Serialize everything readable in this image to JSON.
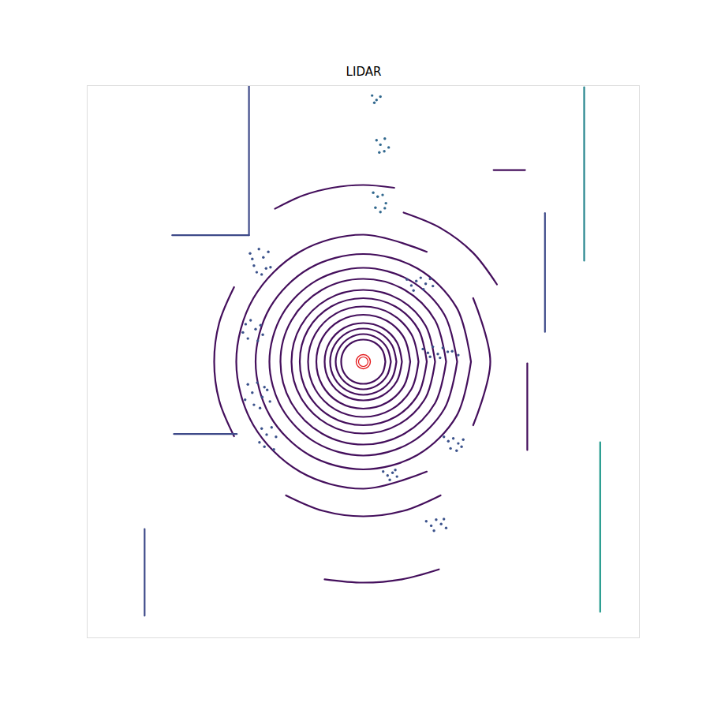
{
  "chart_data": {
    "type": "scatter",
    "title": "LIDAR",
    "xlim": [
      -50,
      50
    ],
    "ylim": [
      -50,
      50
    ],
    "tick_labels": false,
    "grid": false,
    "series": [
      {
        "type": "line",
        "color": "#440f5c",
        "x": [
          4,
          3.5,
          2,
          0,
          -2,
          -3.5,
          -4,
          -3.5,
          -2,
          0,
          2,
          3.5,
          4
        ],
        "y": [
          0,
          2,
          3.5,
          4,
          3.5,
          2,
          0,
          -2,
          -3.5,
          -4,
          -3.5,
          -2,
          0
        ]
      },
      {
        "type": "line",
        "color": "#440f5c",
        "x": [
          5,
          4.3,
          2.5,
          0,
          -2.5,
          -4.3,
          -5,
          -4.3,
          -2.5,
          0,
          2.5,
          4.3,
          5
        ],
        "y": [
          0,
          2.5,
          4.3,
          5,
          4.3,
          2.5,
          0,
          -2.5,
          -4.3,
          -5,
          -4.3,
          -2.5,
          0
        ]
      },
      {
        "type": "line",
        "color": "#440f5c",
        "x": [
          6,
          5.2,
          3,
          0,
          -3,
          -5.2,
          -6,
          -5.2,
          -3,
          0,
          3,
          5.2,
          6
        ],
        "y": [
          0,
          3,
          5.2,
          6,
          5.2,
          3,
          0,
          -3,
          -5.2,
          -6,
          -5.2,
          -3,
          0
        ]
      },
      {
        "type": "line",
        "color": "#440f5c",
        "x": [
          7,
          6.1,
          3.5,
          0,
          -3.5,
          -6.1,
          -7,
          -6.1,
          -3.5,
          0,
          3.5,
          6.1,
          7
        ],
        "y": [
          0,
          3.5,
          6.1,
          7,
          6.1,
          3.5,
          0,
          -3.5,
          -6.1,
          -7,
          -6.1,
          -3.5,
          0
        ]
      },
      {
        "type": "line",
        "color": "#440f5c",
        "x": [
          8.5,
          7.4,
          4.3,
          0,
          -4.3,
          -7.4,
          -8.5,
          -7.4,
          -4.3,
          0,
          4.3,
          7.4,
          8.5
        ],
        "y": [
          0,
          4.3,
          7.4,
          8.5,
          7.4,
          4.3,
          0,
          -4.3,
          -7.4,
          -8.5,
          -7.4,
          -4.3,
          0
        ]
      },
      {
        "type": "line",
        "color": "#440f5c",
        "x": [
          10,
          8.7,
          5,
          0,
          -5,
          -8.7,
          -10,
          -8.7,
          -5,
          0,
          5,
          8.7,
          10
        ],
        "y": [
          0,
          5,
          8.7,
          10,
          8.7,
          5,
          0,
          -5,
          -8.7,
          -10,
          -8.7,
          -5,
          0
        ]
      },
      {
        "type": "line",
        "color": "#440f5c",
        "x": [
          11.5,
          10,
          5.8,
          0,
          -5.8,
          -10,
          -11.5,
          -10,
          -5.8,
          0,
          5.8,
          10,
          11.5
        ],
        "y": [
          0,
          5.8,
          10,
          11.5,
          10,
          5.8,
          0,
          -5.8,
          -10,
          -11.5,
          -10,
          -5.8,
          0
        ]
      },
      {
        "type": "line",
        "color": "#440f5c",
        "x": [
          13,
          11.3,
          6.5,
          0,
          -6.5,
          -11.3,
          -13,
          -11.3,
          -6.5,
          0,
          6.5,
          11.3,
          13
        ],
        "y": [
          0,
          6.5,
          11.3,
          13,
          11.3,
          6.5,
          0,
          -6.5,
          -11.3,
          -13,
          -11.3,
          -6.5,
          0
        ]
      },
      {
        "type": "line",
        "color": "#440f5c",
        "x": [
          15,
          13,
          7.5,
          0,
          -7.5,
          -13,
          -15,
          -13,
          -7.5,
          0,
          7.5,
          13,
          15
        ],
        "y": [
          0,
          7.5,
          13,
          15,
          13,
          7.5,
          0,
          -7.5,
          -13,
          -15,
          -13,
          -7.5,
          0
        ]
      },
      {
        "type": "line",
        "color": "#440f5c",
        "x": [
          17,
          14.7,
          8.5,
          0,
          -8.5,
          -14.7,
          -17,
          -14.7,
          -8.5,
          0,
          8.5,
          14.7,
          17
        ],
        "y": [
          0,
          8.5,
          14.7,
          17,
          14.7,
          8.5,
          0,
          -8.5,
          -14.7,
          -17,
          -14.7,
          -8.5,
          0
        ]
      },
      {
        "type": "line",
        "color": "#440f5c",
        "x": [
          19.5,
          16.9,
          9.8,
          0,
          -9.8,
          -16.9,
          -19.5,
          -16.9,
          -9.8,
          0,
          9.8,
          16.9,
          19.5
        ],
        "y": [
          0,
          9.8,
          16.9,
          19.5,
          16.9,
          9.8,
          0,
          -9.8,
          -16.9,
          -19.5,
          -16.9,
          -9.8,
          0
        ]
      },
      {
        "type": "line",
        "color": "#440f5c",
        "x": [
          11.5,
          0,
          -11.5,
          -19.9,
          -23,
          -19.9,
          -11.5,
          0,
          11.5
        ],
        "y": [
          19.9,
          23,
          19.9,
          11.5,
          0,
          -11.5,
          -19.9,
          -23,
          -19.9
        ]
      },
      {
        "type": "line",
        "color": "#440f5c",
        "x": [
          19.9,
          23,
          19.9
        ],
        "y": [
          -11.5,
          0,
          11.5
        ]
      },
      {
        "type": "line",
        "color": "#440f5c",
        "x": [
          5.6,
          0,
          -5.6,
          -10.9,
          -16
        ],
        "y": [
          31.5,
          32,
          31.5,
          30.1,
          27.7
        ]
      },
      {
        "type": "line",
        "color": "#440f5c",
        "x": [
          24.2,
          19.8,
          14,
          7.3
        ],
        "y": [
          14,
          19.8,
          24.2,
          27
        ]
      },
      {
        "type": "line",
        "color": "#440f5c",
        "x": [
          -14,
          -7.3,
          0,
          7.3,
          14
        ],
        "y": [
          -24.2,
          -27,
          -28,
          -27,
          -24.2
        ]
      },
      {
        "type": "line",
        "color": "#440f5c",
        "x": [
          -7,
          0,
          7,
          13.7
        ],
        "y": [
          -39.4,
          -40,
          -39.4,
          -37.6
        ]
      },
      {
        "type": "line",
        "color": "#440f5c",
        "x": [
          -23.4,
          -26.1,
          -27,
          -26.1,
          -23.4
        ],
        "y": [
          13.5,
          7,
          0,
          -7,
          -13.5
        ]
      },
      {
        "type": "line",
        "color": "#440f5c",
        "x": [
          29.7,
          29.7
        ],
        "y": [
          -0.3,
          -16
        ]
      },
      {
        "type": "line",
        "color": "#440f5c",
        "x": [
          23.6,
          29.3
        ],
        "y": [
          34.7,
          34.7
        ]
      },
      {
        "type": "line",
        "color": "#3e4a89",
        "x": [
          -20.7,
          -20.7
        ],
        "y": [
          50,
          22.9
        ]
      },
      {
        "type": "line",
        "color": "#3e4a89",
        "x": [
          -34.6,
          -20.7
        ],
        "y": [
          22.9,
          22.9
        ]
      },
      {
        "type": "line",
        "color": "#3e4a89",
        "x": [
          32.9,
          32.9
        ],
        "y": [
          26.9,
          5.4
        ]
      },
      {
        "type": "line",
        "color": "#3e4a89",
        "x": [
          -39.6,
          -39.6
        ],
        "y": [
          -30.3,
          -46
        ]
      },
      {
        "type": "line",
        "color": "#3e4a89",
        "x": [
          -34.3,
          -22.9
        ],
        "y": [
          -13.1,
          -13.1
        ]
      },
      {
        "type": "line",
        "color": "#25858e",
        "x": [
          40,
          40
        ],
        "y": [
          49.7,
          18.3
        ]
      },
      {
        "type": "line",
        "color": "#1f988b",
        "x": [
          42.9,
          42.9
        ],
        "y": [
          -14.6,
          -45.3
        ]
      },
      {
        "type": "scatter",
        "color": "#3b528b",
        "marker": "circle",
        "x": [
          -20.5,
          -19.8,
          -18.9,
          -18.1,
          -17.2,
          -16.8,
          -19.3,
          -18.4,
          -17.6,
          -20.1,
          -21.3,
          -20.4,
          -19.5,
          -18.6,
          -20.9,
          -19.1,
          -18.2,
          -21.8,
          -20.9,
          -20.1,
          -19.2,
          -18.3,
          -17.4,
          -19.8,
          -18.7,
          -17.9,
          -21.4,
          -16.9,
          -18.4,
          -17.5,
          -16.6,
          -15.8,
          -17.9,
          -16.2,
          -18.8
        ],
        "y": [
          19.6,
          17.4,
          20.4,
          18.9,
          19.9,
          17.1,
          16.2,
          15.8,
          16.9,
          18.6,
          6.8,
          7.5,
          5.9,
          6.6,
          4.2,
          3.8,
          4.9,
          5.3,
          -4.1,
          -5.6,
          -3.8,
          -6.4,
          -5.1,
          -7.8,
          -8.4,
          -4.6,
          -6.9,
          -7.2,
          -12.1,
          -13.2,
          -11.9,
          -13.6,
          -15.4,
          -15.9,
          -14.6
        ]
      },
      {
        "type": "scatter",
        "color": "#31688e",
        "marker": "circle",
        "x": [
          2.4,
          3.1,
          3.9,
          4.6,
          2.9,
          3.8,
          1.8,
          2.6,
          3.5,
          4.1,
          2.2,
          3.1,
          3.9,
          1.6,
          2.4,
          3.1,
          2.0
        ],
        "y": [
          40.1,
          39.3,
          40.4,
          38.8,
          37.9,
          38.1,
          30.6,
          29.9,
          30.2,
          28.7,
          27.9,
          27.1,
          27.8,
          48.2,
          47.4,
          48.0,
          46.9
        ]
      },
      {
        "type": "scatter",
        "color": "#3b528b",
        "marker": "circle",
        "x": [
          7.9,
          8.7,
          9.6,
          10.4,
          11.3,
          12.1,
          9.1,
          10.9,
          12.6,
          10.8,
          11.7,
          12.6,
          13.5,
          14.4,
          15.3,
          12.1,
          13.9,
          16.1,
          17.2,
          14.6,
          15.4,
          16.3,
          17.2,
          18.1,
          15.8,
          16.9,
          17.8,
          11.4,
          12.3,
          13.2,
          14.1,
          15,
          12.8,
          14.6,
          3.6,
          4.4,
          5.3,
          6.1,
          4.8,
          5.8
        ],
        "y": [
          14.9,
          13.8,
          14.6,
          15.2,
          14.1,
          15.0,
          12.9,
          13.1,
          13.7,
          2.3,
          1.6,
          2.7,
          1.4,
          2.5,
          1.8,
          0.9,
          0.7,
          1.9,
          1.2,
          -13.6,
          -14.4,
          -13.9,
          -14.8,
          -14.1,
          -15.7,
          -16.1,
          -15.4,
          -28.9,
          -29.7,
          -28.6,
          -29.4,
          -30.1,
          -30.6,
          -28.5,
          -19.9,
          -20.6,
          -20.1,
          -20.8,
          -21.4,
          -19.6
        ]
      },
      {
        "type": "scatter",
        "color": "#e41a1c",
        "marker": "ring",
        "x": [
          0
        ],
        "y": [
          0
        ]
      }
    ]
  }
}
